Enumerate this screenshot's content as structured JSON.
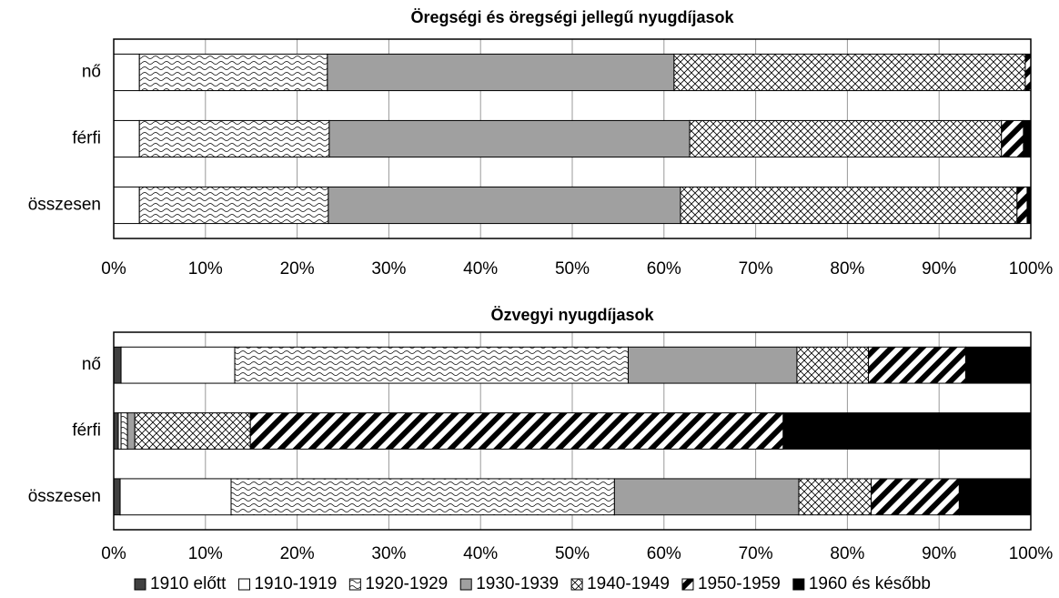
{
  "chart_data": [
    {
      "type": "bar",
      "title": "Öregségi és öregségi jellegű nyugdíjasok",
      "categories": [
        "nő",
        "férfi",
        "összesen"
      ],
      "series": [
        {
          "name": "1910 előtt",
          "color": "#404040",
          "pattern": "solid",
          "values": [
            0,
            0,
            0
          ]
        },
        {
          "name": "1910-1919",
          "color": "#ffffff",
          "pattern": "solid",
          "values": [
            2.8,
            2.8,
            2.8
          ]
        },
        {
          "name": "1920-1929",
          "color": "#ffffff",
          "pattern": "wave",
          "values": [
            20.5,
            20.7,
            20.6
          ]
        },
        {
          "name": "1930-1939",
          "color": "#a0a0a0",
          "pattern": "solid",
          "values": [
            37.8,
            39.3,
            38.4
          ]
        },
        {
          "name": "1940-1949",
          "color": "#ffffff",
          "pattern": "cross",
          "values": [
            38.3,
            34.0,
            36.7
          ]
        },
        {
          "name": "1950-1959",
          "color": "#ffffff",
          "pattern": "diagonal",
          "values": [
            0.6,
            2.4,
            1.1
          ]
        },
        {
          "name": "1960 és később",
          "color": "#000000",
          "pattern": "solid",
          "values": [
            0,
            0.8,
            0.4
          ]
        }
      ],
      "xlim": [
        0,
        100
      ],
      "xticks": [
        {
          "value": 0,
          "label": "0%"
        },
        {
          "value": 10,
          "label": "10%"
        },
        {
          "value": 20,
          "label": "20%"
        },
        {
          "value": 30,
          "label": "30%"
        },
        {
          "value": 40,
          "label": "40%"
        },
        {
          "value": 50,
          "label": "50%"
        },
        {
          "value": 60,
          "label": "60%"
        },
        {
          "value": 70,
          "label": "70%"
        },
        {
          "value": 80,
          "label": "80%"
        },
        {
          "value": 90,
          "label": "90%"
        },
        {
          "value": 100,
          "label": "100%"
        }
      ],
      "grid": true
    },
    {
      "type": "bar",
      "title": "Özvegyi nyugdíjasok",
      "categories": [
        "nő",
        "férfi",
        "összesen"
      ],
      "series": [
        {
          "name": "1910 előtt",
          "color": "#404040",
          "pattern": "solid",
          "values": [
            0.8,
            0.5,
            0.7
          ]
        },
        {
          "name": "1910-1919",
          "color": "#ffffff",
          "pattern": "solid",
          "values": [
            12.4,
            0.3,
            12.1
          ]
        },
        {
          "name": "1920-1929",
          "color": "#ffffff",
          "pattern": "wave",
          "values": [
            42.9,
            0.7,
            41.8
          ]
        },
        {
          "name": "1930-1939",
          "color": "#a0a0a0",
          "pattern": "solid",
          "values": [
            18.4,
            0.8,
            20.1
          ]
        },
        {
          "name": "1940-1949",
          "color": "#ffffff",
          "pattern": "cross",
          "values": [
            7.8,
            12.6,
            7.9
          ]
        },
        {
          "name": "1950-1959",
          "color": "#ffffff",
          "pattern": "diagonal",
          "values": [
            10.6,
            58.1,
            9.6
          ]
        },
        {
          "name": "1960 és később",
          "color": "#000000",
          "pattern": "solid",
          "values": [
            7.1,
            27.0,
            7.8
          ]
        }
      ],
      "xlim": [
        0,
        100
      ],
      "xticks": [
        {
          "value": 0,
          "label": "0%"
        },
        {
          "value": 10,
          "label": "10%"
        },
        {
          "value": 20,
          "label": "20%"
        },
        {
          "value": 30,
          "label": "30%"
        },
        {
          "value": 40,
          "label": "40%"
        },
        {
          "value": 50,
          "label": "50%"
        },
        {
          "value": 60,
          "label": "60%"
        },
        {
          "value": 70,
          "label": "70%"
        },
        {
          "value": 80,
          "label": "80%"
        },
        {
          "value": 90,
          "label": "90%"
        },
        {
          "value": 100,
          "label": "100%"
        }
      ],
      "grid": true
    }
  ]
}
